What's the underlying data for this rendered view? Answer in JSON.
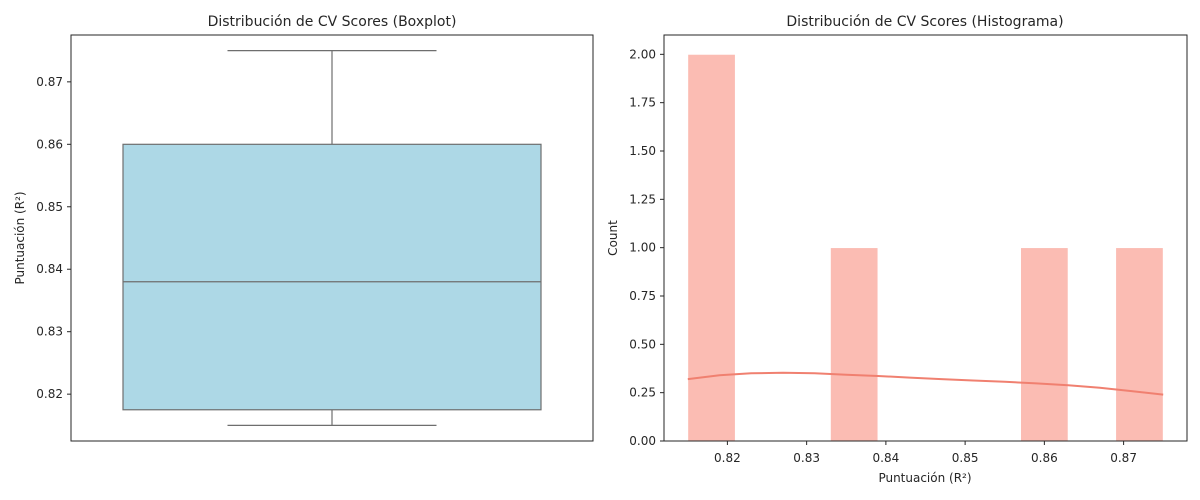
{
  "chart_data": [
    {
      "type": "box",
      "title": "Distribución de CV Scores (Boxplot)",
      "xlabel": "",
      "ylabel": "Puntuación (R²)",
      "ylim": [
        0.8125,
        0.8775
      ],
      "yticks": [
        0.82,
        0.83,
        0.84,
        0.85,
        0.86,
        0.87
      ],
      "yticklabels": [
        "0.82",
        "0.83",
        "0.84",
        "0.85",
        "0.86",
        "0.87"
      ],
      "box": {
        "whisker_low": 0.815,
        "q1": 0.8175,
        "median": 0.838,
        "q3": 0.86,
        "whisker_high": 0.875
      },
      "colors": {
        "box_fill": "#add8e6",
        "box_edge": "#6e6e6e",
        "spine": "#262626"
      }
    },
    {
      "type": "histogram",
      "title": "Distribución de CV Scores (Histograma)",
      "xlabel": "Puntuación (R²)",
      "ylabel": "Count",
      "xlim": [
        0.812,
        0.878
      ],
      "ylim": [
        0,
        2.1
      ],
      "xticks": [
        0.82,
        0.83,
        0.84,
        0.85,
        0.86,
        0.87
      ],
      "xticklabels": [
        "0.82",
        "0.83",
        "0.84",
        "0.85",
        "0.86",
        "0.87"
      ],
      "yticks": [
        0,
        0.25,
        0.5,
        0.75,
        1.0,
        1.25,
        1.5,
        1.75,
        2.0
      ],
      "yticklabels": [
        "0.00",
        "0.25",
        "0.50",
        "0.75",
        "1.00",
        "1.25",
        "1.50",
        "1.75",
        "2.00"
      ],
      "bins": [
        {
          "x0": 0.815,
          "x1": 0.821,
          "count": 2
        },
        {
          "x0": 0.833,
          "x1": 0.839,
          "count": 1
        },
        {
          "x0": 0.857,
          "x1": 0.863,
          "count": 1
        },
        {
          "x0": 0.869,
          "x1": 0.875,
          "count": 1
        }
      ],
      "kde": {
        "x": [
          0.815,
          0.819,
          0.823,
          0.827,
          0.831,
          0.835,
          0.839,
          0.843,
          0.847,
          0.851,
          0.855,
          0.859,
          0.863,
          0.867,
          0.871,
          0.875
        ],
        "y": [
          0.32,
          0.34,
          0.35,
          0.353,
          0.35,
          0.343,
          0.336,
          0.328,
          0.32,
          0.313,
          0.306,
          0.298,
          0.288,
          0.275,
          0.258,
          0.24
        ]
      },
      "colors": {
        "bar_fill": "#fbbcb3",
        "kde_line": "#f08070",
        "spine": "#262626"
      }
    }
  ]
}
